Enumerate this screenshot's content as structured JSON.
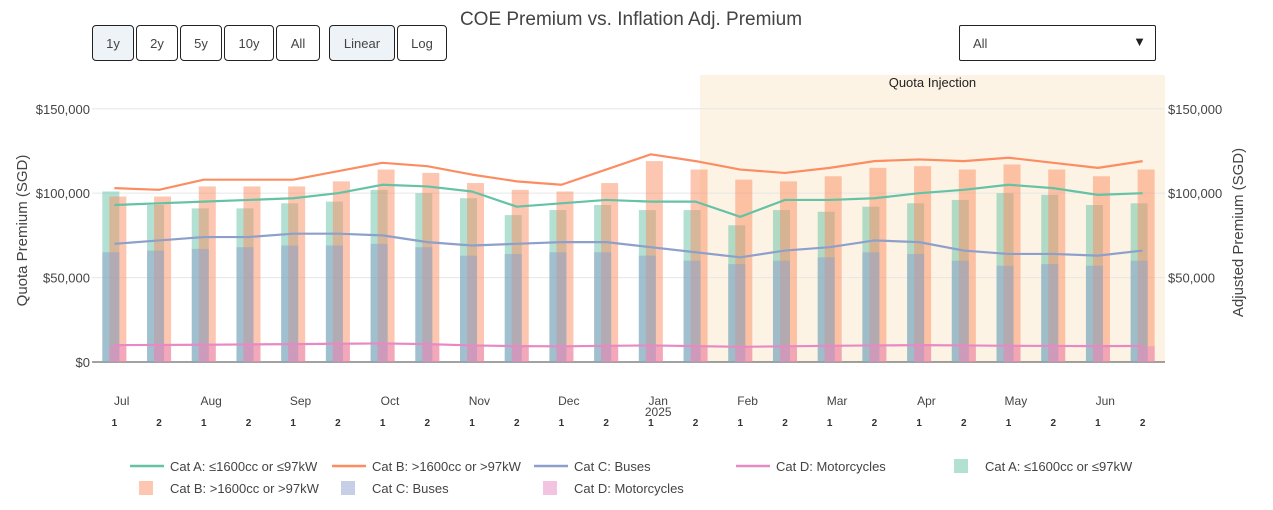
{
  "controls": {
    "range_buttons": [
      {
        "label": "1y",
        "active": true
      },
      {
        "label": "2y",
        "active": false
      },
      {
        "label": "5y",
        "active": false
      },
      {
        "label": "10y",
        "active": false
      },
      {
        "label": "All",
        "active": false
      }
    ],
    "scale_buttons": [
      {
        "label": "Linear",
        "active": true
      },
      {
        "label": "Log",
        "active": false
      }
    ],
    "dropdown": {
      "selected": "All"
    }
  },
  "chart_data": {
    "type": "bar",
    "title": "COE Premium vs. Inflation Adj. Premium",
    "ylabel": "Quota Premium (SGD)",
    "y2label": "Adjusted Premium (SGD)",
    "ylim": [
      0,
      170000
    ],
    "y2lim": [
      0,
      170000
    ],
    "y_ticks": [
      "$0",
      "$50,000",
      "$100,000",
      "$150,000"
    ],
    "y2_ticks": [
      "$50,000",
      "$100,000",
      "$150,000"
    ],
    "grid": true,
    "legend_position": "bottom",
    "months": [
      "Jul",
      "Aug",
      "Sep",
      "Oct",
      "Nov",
      "Dec",
      "Jan",
      "Feb",
      "Mar",
      "Apr",
      "May",
      "Jun"
    ],
    "year_label": {
      "month_index": 6,
      "text": "2025"
    },
    "bidding_labels": [
      "1",
      "2"
    ],
    "annotation": {
      "text": "Quota Injection",
      "from_month_index": 7,
      "color": "#fdf3e4"
    },
    "bar_series": [
      {
        "name": "Cat A: ≤1600cc or ≤97kW",
        "color": "#66c2a5",
        "values": [
          101000,
          93000,
          91000,
          91000,
          94000,
          95000,
          102000,
          100000,
          97000,
          87000,
          90000,
          93000,
          90000,
          90000,
          81000,
          90000,
          89000,
          92000,
          94000,
          96000,
          100000,
          99000,
          93000,
          94000
        ]
      },
      {
        "name": "Cat B: >1600cc or >97kW",
        "color": "#fc8d62",
        "values": [
          98000,
          98000,
          104000,
          104000,
          104000,
          107000,
          114000,
          112000,
          106000,
          102000,
          101000,
          106000,
          119000,
          114000,
          108000,
          107000,
          110000,
          115000,
          116000,
          114000,
          117000,
          114000,
          110000,
          114000
        ]
      },
      {
        "name": "Cat C: Buses",
        "color": "#8da0cb",
        "values": [
          65000,
          66000,
          67000,
          68000,
          69000,
          69000,
          70000,
          68000,
          63000,
          64000,
          65000,
          65000,
          63000,
          60000,
          58000,
          60000,
          62000,
          65000,
          64000,
          60000,
          57000,
          58000,
          57000,
          60000
        ]
      },
      {
        "name": "Cat D: Motorcycles",
        "color": "#e78ac3",
        "values": [
          9500,
          9600,
          9700,
          9900,
          10000,
          10200,
          10400,
          10200,
          9600,
          9200,
          9000,
          9100,
          9300,
          9000,
          8800,
          9000,
          9300,
          9600,
          9800,
          9600,
          9400,
          9300,
          9200,
          9300
        ]
      }
    ],
    "line_series": [
      {
        "name": "Cat A: ≤1600cc or ≤97kW",
        "color": "#66c2a5",
        "values": [
          93000,
          94000,
          95000,
          96000,
          97000,
          100000,
          105000,
          104000,
          101000,
          92000,
          94000,
          96000,
          95000,
          95000,
          86000,
          96000,
          96000,
          97000,
          100000,
          102000,
          105000,
          103000,
          99000,
          100000
        ]
      },
      {
        "name": "Cat B: >1600cc or >97kW",
        "color": "#fc8d62",
        "values": [
          103000,
          102000,
          108000,
          108000,
          108000,
          113000,
          118000,
          116000,
          111000,
          107000,
          105000,
          114000,
          123000,
          119000,
          114000,
          112000,
          115000,
          119000,
          120000,
          119000,
          121000,
          118000,
          115000,
          119000
        ]
      },
      {
        "name": "Cat C: Buses",
        "color": "#8da0cb",
        "values": [
          70000,
          72000,
          74000,
          74000,
          76000,
          76000,
          75000,
          71000,
          69000,
          70000,
          71000,
          71000,
          68000,
          65000,
          62000,
          66000,
          68000,
          72000,
          71000,
          66000,
          64000,
          64000,
          63000,
          66000
        ]
      },
      {
        "name": "Cat D: Motorcycles",
        "color": "#e78ac3",
        "values": [
          10000,
          10100,
          10200,
          10400,
          10600,
          10800,
          11000,
          10600,
          9800,
          9400,
          9300,
          9600,
          9800,
          9400,
          9000,
          9300,
          9600,
          9800,
          10000,
          9800,
          9600,
          9500,
          9400,
          9500
        ]
      }
    ]
  }
}
